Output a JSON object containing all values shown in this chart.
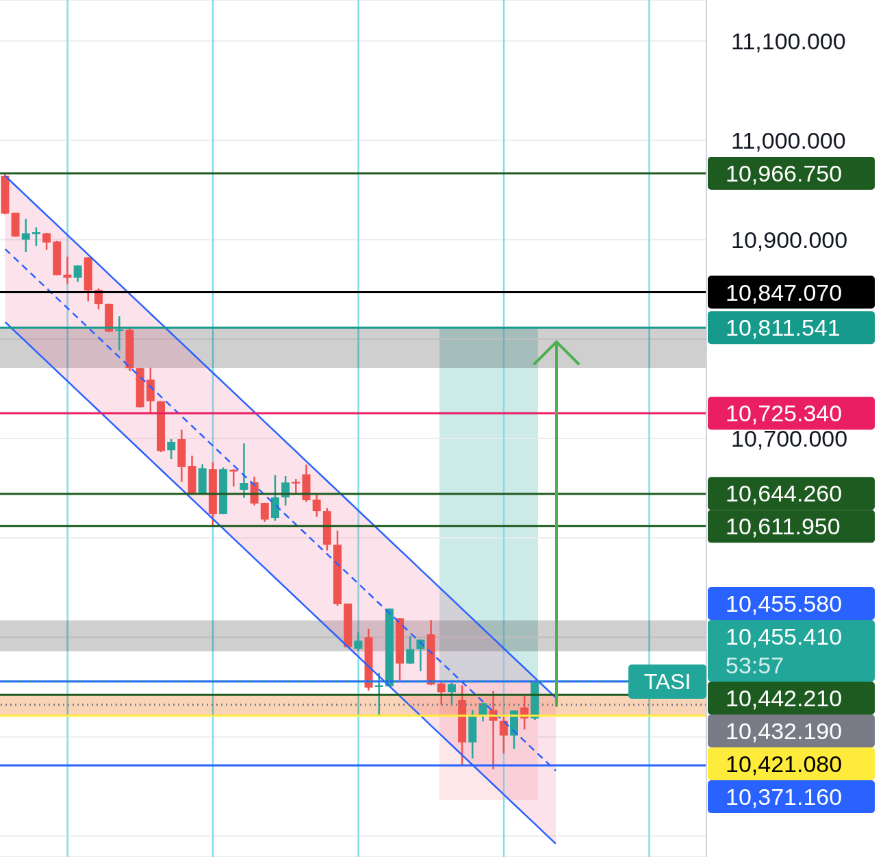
{
  "chart_data": {
    "type": "candlestick",
    "categories": [
      null,
      null,
      null,
      null,
      null,
      null,
      null,
      null,
      null,
      null,
      null,
      null,
      null,
      null,
      null,
      null,
      null,
      null,
      null,
      null,
      null,
      null,
      null,
      null,
      null,
      null,
      null,
      null,
      null,
      null,
      null,
      null,
      null,
      null,
      null,
      null,
      null,
      null,
      null,
      null,
      null,
      null,
      null,
      null,
      null,
      null,
      null,
      null,
      null,
      null,
      null,
      null,
      null,
      null,
      null,
      null,
      null,
      null,
      null,
      null,
      null,
      null,
      null,
      null,
      null,
      null,
      null,
      null
    ],
    "ohlc": [
      [
        10964.1,
        10966.2,
        10925.5,
        10926.2
      ],
      [
        10926.9,
        10926.9,
        10903.0,
        10903.0
      ],
      [
        10900.0,
        10920.7,
        10887.4,
        10906.4
      ],
      [
        10905.5,
        10912.2,
        10893.6,
        10907.4
      ],
      [
        10906.4,
        10906.8,
        10889.7,
        10897.0
      ],
      [
        10898.1,
        10898.6,
        10864.0,
        10864.3
      ],
      [
        10864.8,
        10882.8,
        10855.2,
        10861.6
      ],
      [
        10861.6,
        10874.0,
        10857.4,
        10874.0
      ],
      [
        10882.1,
        10882.5,
        10837.9,
        10848.8
      ],
      [
        10849.4,
        10851.0,
        10829.9,
        10835.0
      ],
      [
        10835.2,
        10835.5,
        10807.0,
        10807.4
      ],
      [
        10808.1,
        10823.0,
        10788.5,
        10809.7
      ],
      [
        10809.2,
        10811.5,
        10767.8,
        10770.8
      ],
      [
        10770.8,
        10771.0,
        10731.0,
        10731.5
      ],
      [
        10759.1,
        10771.2,
        10725.3,
        10737.4
      ],
      [
        10737.4,
        10737.6,
        10686.2,
        10687.4
      ],
      [
        10688.1,
        10699.3,
        10679.3,
        10696.6
      ],
      [
        10699.3,
        10708.8,
        10656.3,
        10671.2
      ],
      [
        10672.4,
        10682.6,
        10644.0,
        10644.3
      ],
      [
        10644.3,
        10674.0,
        10644.0,
        10670.1
      ],
      [
        10669.0,
        10675.9,
        10611.5,
        10624.1
      ],
      [
        10624.1,
        10670.8,
        10624.0,
        10669.0
      ],
      [
        10668.5,
        10669.0,
        10651.7,
        10666.7
      ],
      [
        10648.3,
        10695.0,
        10640.2,
        10655.2
      ],
      [
        10655.9,
        10661.6,
        10632.6,
        10634.5
      ],
      [
        10635.2,
        10635.4,
        10616.1,
        10618.4
      ],
      [
        10620.0,
        10663.2,
        10617.2,
        10640.7
      ],
      [
        10640.7,
        10662.1,
        10632.6,
        10655.7
      ],
      [
        10656.3,
        10659.3,
        10643.7,
        10654.7
      ],
      [
        10663.9,
        10673.6,
        10636.1,
        10637.9
      ],
      [
        10638.4,
        10643.7,
        10621.2,
        10626.9
      ],
      [
        10626.9,
        10629.9,
        10587.4,
        10593.1
      ],
      [
        10593.1,
        10607.4,
        10531.5,
        10533.3
      ],
      [
        10533.8,
        10534.0,
        10490.0,
        10490.1
      ],
      [
        10488.5,
        10505.3,
        10486.2,
        10496.6
      ],
      [
        10500.0,
        10508.5,
        10446.4,
        10449.4
      ],
      [
        10449.9,
        10464.3,
        10420.7,
        10451.7
      ],
      [
        10450.6,
        10528.8,
        10450.4,
        10528.8
      ],
      [
        10519.1,
        10519.3,
        10456.8,
        10473.6
      ],
      [
        10473.6,
        10501.2,
        10473.4,
        10488.1
      ],
      [
        10488.1,
        10497.7,
        10466.0,
        10497.7
      ],
      [
        10503.0,
        10517.2,
        10451.7,
        10452.4
      ],
      [
        10453.6,
        10456.3,
        10432.2,
        10444.8
      ],
      [
        10444.8,
        10456.8,
        10432.2,
        10452.9
      ],
      [
        10436.8,
        10451.7,
        10371.2,
        10394.3
      ],
      [
        10394.3,
        10426.9,
        10378.1,
        10421.9
      ],
      [
        10421.9,
        10433.8,
        10415.4,
        10433.8
      ],
      [
        10426.9,
        10446.0,
        10367.1,
        10416.1
      ],
      [
        10416.1,
        10421.9,
        10383.2,
        10401.2
      ],
      [
        10401.2,
        10426.4,
        10387.8,
        10426.4
      ],
      [
        10429.4,
        10441.4,
        10407.4,
        10418.4
      ],
      [
        10418.4,
        10455.6,
        10416.8,
        10455.41
      ],
      null,
      null,
      null,
      null,
      null,
      null,
      null,
      null,
      null,
      null,
      null,
      null,
      null,
      null,
      null,
      null
    ],
    "colors": [
      "#ef5350",
      "#ef5350",
      "#26a69a",
      "#26a69a",
      "#ef5350",
      "#ef5350",
      "#ef5350",
      "#26a69a",
      "#ef5350",
      "#ef5350",
      "#ef5350",
      "#26a69a",
      "#ef5350",
      "#ef5350",
      "#ef5350",
      "#ef5350",
      "#26a69a",
      "#ef5350",
      "#ef5350",
      "#26a69a",
      "#ef5350",
      "#26a69a",
      "#ef5350",
      "#26a69a",
      "#ef5350",
      "#ef5350",
      "#26a69a",
      "#26a69a",
      "#ef5350",
      "#ef5350",
      "#ef5350",
      "#ef5350",
      "#ef5350",
      "#ef5350",
      "#26a69a",
      "#ef5350",
      "#26a69a",
      "#26a69a",
      "#ef5350",
      "#26a69a",
      "#26a69a",
      "#ef5350",
      "#ef5350",
      "#26a69a",
      "#ef5350",
      "#26a69a",
      "#26a69a",
      "#ef5350",
      "#ef5350",
      "#26a69a",
      "#ef5350",
      "#26a69a",
      null,
      null,
      null,
      null,
      null,
      null,
      null,
      null,
      null,
      null,
      null,
      null,
      null,
      null,
      null,
      null
    ],
    "series": [
      {
        "type": "line",
        "color": "#2962ff",
        "line_style": "solid",
        "values": [
          10964.0,
          10954.1,
          10944.2,
          10934.3,
          10924.4,
          10914.5,
          10904.6,
          10894.7,
          10884.8,
          10874.9,
          10865.0,
          10855.1,
          10845.2,
          10835.3,
          10825.4,
          10815.5,
          10805.6,
          10795.7,
          10785.8,
          10775.9,
          10766.0,
          10756.1,
          10746.2,
          10736.3,
          10726.4,
          10716.5,
          10706.6,
          10696.7,
          10686.8,
          10676.9,
          10667.0,
          10657.1,
          10647.2,
          10637.3,
          10627.4,
          10617.5,
          10607.6,
          10597.7,
          10587.8,
          10577.9,
          10568.0,
          10558.1,
          10548.2,
          10538.3,
          10528.4,
          10518.5,
          10508.6,
          10498.7,
          10488.8,
          10478.9,
          10469.0,
          10459.1,
          10449.2,
          10439.3,
          null,
          null,
          null,
          null,
          null,
          null,
          null,
          null,
          null,
          null,
          null,
          null,
          null,
          null
        ]
      },
      {
        "type": "line",
        "color": "#2962ff",
        "line_style": "dashed",
        "values": [
          10890.5,
          10880.6,
          10870.7,
          10860.8,
          10850.9,
          10841.0,
          10831.1,
          10821.2,
          10811.3,
          10801.4,
          10791.5,
          10781.6,
          10771.7,
          10761.8,
          10751.9,
          10742.0,
          10732.1,
          10722.2,
          10712.3,
          10702.4,
          10692.5,
          10682.6,
          10672.7,
          10662.8,
          10652.9,
          10643.0,
          10633.1,
          10623.2,
          10613.3,
          10603.4,
          10593.5,
          10583.6,
          10573.7,
          10563.8,
          10553.9,
          10544.0,
          10534.1,
          10524.2,
          10514.3,
          10504.4,
          10494.5,
          10484.6,
          10474.7,
          10464.8,
          10454.9,
          10445.0,
          10435.1,
          10425.2,
          10415.3,
          10405.4,
          10395.5,
          10385.6,
          10375.7,
          10365.8,
          null,
          null,
          null,
          null,
          null,
          null,
          null,
          null,
          null,
          null,
          null,
          null,
          null,
          null
        ],
        "lower": [
          10817.0,
          10807.1,
          10797.2,
          10787.3,
          10777.4,
          10767.5,
          10757.6,
          10747.7,
          10737.8,
          10727.9,
          10718.0,
          10708.1,
          10698.2,
          10688.3,
          10678.4,
          10668.5,
          10658.6,
          10648.7,
          10638.8,
          10628.9,
          10619.0,
          10609.1,
          10599.2,
          10589.3,
          10579.4,
          10569.5,
          10559.6,
          10549.7,
          10539.8,
          10529.9,
          10520.0,
          10510.1,
          10500.2,
          10490.3,
          10480.4,
          10470.5,
          10460.6,
          10450.7,
          10440.8,
          10430.9,
          10421.0,
          10411.1,
          10401.2,
          10391.3,
          10381.4,
          10371.5,
          10361.6,
          10351.7,
          10341.8,
          10331.9,
          10322.0,
          10312.1,
          10302.2,
          10292.3,
          null,
          null,
          null,
          null,
          null,
          null,
          null,
          null,
          null,
          null,
          null,
          null,
          null,
          null
        ],
        "upper": [
          10964.0,
          10954.1,
          10944.2,
          10934.3,
          10924.4,
          10914.5,
          10904.6,
          10894.7,
          10884.8,
          10874.9,
          10865.0,
          10855.1,
          10845.2,
          10835.3,
          10825.4,
          10815.5,
          10805.6,
          10795.7,
          10785.8,
          10775.9,
          10766.0,
          10756.1,
          10746.2,
          10736.3,
          10726.4,
          10716.5,
          10706.6,
          10696.7,
          10686.8,
          10676.9,
          10667.0,
          10657.1,
          10647.2,
          10637.3,
          10627.4,
          10617.5,
          10607.6,
          10597.7,
          10587.8,
          10577.9,
          10568.0,
          10558.1,
          10548.2,
          10538.3,
          10528.4,
          10518.5,
          10508.6,
          10498.7,
          10488.8,
          10478.9,
          10469.0,
          10459.1,
          10449.2,
          10439.3,
          null,
          null,
          null,
          null,
          null,
          null,
          null,
          null,
          null,
          null,
          null,
          null,
          null,
          null
        ]
      },
      {
        "type": "line",
        "color": "#2962ff",
        "line_style": "solid",
        "values": [
          10817.0,
          10807.1,
          10797.2,
          10787.3,
          10777.4,
          10767.5,
          10757.6,
          10747.7,
          10737.8,
          10727.9,
          10718.0,
          10708.1,
          10698.2,
          10688.3,
          10678.4,
          10668.5,
          10658.6,
          10648.7,
          10638.8,
          10628.9,
          10619.0,
          10609.1,
          10599.2,
          10589.3,
          10579.4,
          10569.5,
          10559.6,
          10549.7,
          10539.8,
          10529.9,
          10520.0,
          10510.1,
          10500.2,
          10490.3,
          10480.4,
          10470.5,
          10460.6,
          10450.7,
          10440.8,
          10430.9,
          10421.0,
          10411.1,
          10401.2,
          10391.3,
          10381.4,
          10371.5,
          10361.6,
          10351.7,
          10341.8,
          10331.9,
          10322.0,
          10312.1,
          10302.2,
          10292.3,
          null,
          null,
          null,
          null,
          null,
          null,
          null,
          null,
          null,
          null,
          null,
          null,
          null,
          null
        ]
      }
    ],
    "ylim": [
      10279,
      11141
    ],
    "yticks": [
      {
        "value": 10300,
        "label": null
      },
      {
        "value": 10400,
        "label": null
      },
      {
        "value": 10500,
        "label": null
      },
      {
        "value": 10600,
        "label": null
      },
      {
        "value": 10700,
        "label": "10,700.000"
      },
      {
        "value": 10800,
        "label": null
      },
      {
        "value": 10900,
        "label": "10,900.000"
      },
      {
        "value": 11000,
        "label": "11,000.000"
      },
      {
        "value": 11100,
        "label": "11,100.000"
      }
    ],
    "ref_lines": [
      {
        "axis": "y",
        "value": 10966.75,
        "label": "10,966.750",
        "color": "#1e5b20",
        "line_style": "solid"
      },
      {
        "axis": "y",
        "value": 10847.07,
        "label": "10,847.070",
        "color": "#000000",
        "line_style": "solid"
      },
      {
        "axis": "y",
        "value": 10811.541,
        "label": "10,811.541",
        "color": "#159a8c",
        "line_style": "solid"
      },
      {
        "axis": "y",
        "value": 10725.34,
        "label": "10,725.340",
        "color": "#e91e63",
        "line_style": "solid"
      },
      {
        "axis": "y",
        "value": 10644.26,
        "label": "10,644.260",
        "color": "#1e5b20",
        "line_style": "solid"
      },
      {
        "axis": "y",
        "value": 10611.95,
        "label": "10,611.950",
        "color": "#1e5b20",
        "line_style": "solid"
      },
      {
        "axis": "y",
        "value": 10455.58,
        "label": "10,455.580",
        "color": "#2962ff",
        "line_style": "solid"
      },
      {
        "axis": "y",
        "value": 10455.41,
        "label": "10,455.410\n53:57",
        "color": "#22a699",
        "line_style": "dotted"
      },
      {
        "axis": "y",
        "value": 10442.21,
        "label": "10,442.210",
        "color": "#1e5b20",
        "line_style": "solid"
      },
      {
        "axis": "y",
        "value": 10432.19,
        "label": "10,432.190",
        "color": "#787b86",
        "line_style": "dotted"
      },
      {
        "axis": "y",
        "value": 10421.08,
        "label": "10,421.080",
        "color": "#ffeb3b",
        "line_style": "solid"
      },
      {
        "axis": "y",
        "value": 10371.16,
        "label": "10,371.160",
        "color": "#2962ff",
        "line_style": "solid"
      }
    ],
    "bands": [
      {
        "axis": "y",
        "from": 10771,
        "to": 10812,
        "color": "#cfcfcf"
      },
      {
        "axis": "y",
        "from": 10486,
        "to": 10517,
        "color": "#cfcfcf"
      },
      {
        "axis": "y",
        "from": 10421.08,
        "to": 10442.21,
        "color": "#fad4b6"
      }
    ],
    "annotations": [
      "TASI"
    ],
    "grid": true,
    "tick_labels": "y"
  }
}
